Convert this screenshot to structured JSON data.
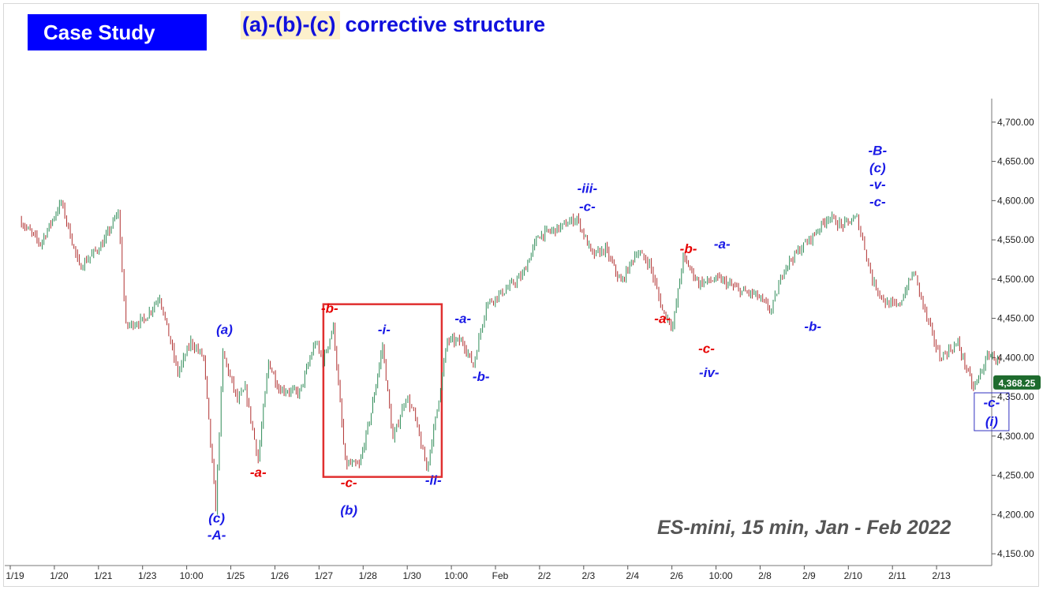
{
  "header": {
    "badge": "Case Study",
    "pattern_label": "(a)-(b)-(c)",
    "subtitle": "corrective structure"
  },
  "footer": {
    "instrument": "ES-mini, 15 min, Jan - Feb 2022"
  },
  "colors": {
    "badge_bg": "#0000ff",
    "wave_blue": "#1a1ae6",
    "wave_red": "#e60000",
    "bull_candle": "#2e8b57",
    "bear_candle": "#b03030",
    "highlight_box": "#e03030",
    "last_price_bg": "#1e6b2e"
  },
  "chart_data": {
    "type": "candlestick",
    "x_axis": {
      "ticks": [
        "1/19",
        "1/20",
        "1/21",
        "1/23",
        "10:00",
        "1/25",
        "1/26",
        "1/27",
        "1/28",
        "1/30",
        "10:00",
        "Feb",
        "2/2",
        "2/3",
        "2/4",
        "2/6",
        "10:00",
        "2/8",
        "2/9",
        "2/10",
        "2/11",
        "2/13"
      ]
    },
    "y_axis": {
      "position": "right",
      "range": [
        4135,
        4730
      ],
      "ticks": [
        4150,
        4200,
        4250,
        4300,
        4350,
        4400,
        4450,
        4500,
        4550,
        4600,
        4650,
        4700
      ],
      "tick_labels": [
        "4,150.00",
        "4,200.00",
        "4,250.00",
        "4,300.00",
        "4,350.00",
        "4,400.00",
        "4,450.00",
        "4,500.00",
        "4,550.00",
        "4,600.00",
        "4,650.00",
        "4,700.00"
      ]
    },
    "last_price": {
      "value": 4368.25,
      "label": "4,368.25"
    },
    "path_pivots": [
      [
        0,
        4575
      ],
      [
        0.4,
        4545
      ],
      [
        0.8,
        4598
      ],
      [
        1.15,
        4515
      ],
      [
        1.6,
        4545
      ],
      [
        1.9,
        4585
      ],
      [
        2.05,
        4440
      ],
      [
        2.4,
        4448
      ],
      [
        2.7,
        4478
      ],
      [
        3.05,
        4380
      ],
      [
        3.3,
        4420
      ],
      [
        3.55,
        4400
      ],
      [
        3.78,
        4208
      ],
      [
        3.92,
        4405
      ],
      [
        4.2,
        4345
      ],
      [
        4.35,
        4360
      ],
      [
        4.6,
        4270
      ],
      [
        4.8,
        4395
      ],
      [
        5.0,
        4360
      ],
      [
        5.4,
        4355
      ],
      [
        5.7,
        4420
      ],
      [
        5.85,
        4395
      ],
      [
        6.05,
        4440
      ],
      [
        6.28,
        4265
      ],
      [
        6.55,
        4262
      ],
      [
        6.78,
        4330
      ],
      [
        7.0,
        4415
      ],
      [
        7.2,
        4295
      ],
      [
        7.45,
        4350
      ],
      [
        7.6,
        4330
      ],
      [
        7.85,
        4258
      ],
      [
        8.02,
        4320
      ],
      [
        8.25,
        4422
      ],
      [
        8.55,
        4420
      ],
      [
        8.75,
        4390
      ],
      [
        9.0,
        4468
      ],
      [
        9.35,
        4485
      ],
      [
        9.7,
        4505
      ],
      [
        10.0,
        4555
      ],
      [
        10.4,
        4565
      ],
      [
        10.75,
        4578
      ],
      [
        11.05,
        4530
      ],
      [
        11.3,
        4538
      ],
      [
        11.6,
        4495
      ],
      [
        11.9,
        4535
      ],
      [
        12.15,
        4520
      ],
      [
        12.4,
        4460
      ],
      [
        12.6,
        4440
      ],
      [
        12.8,
        4528
      ],
      [
        13.1,
        4495
      ],
      [
        13.5,
        4500
      ],
      [
        13.9,
        4485
      ],
      [
        14.2,
        4480
      ],
      [
        14.5,
        4460
      ],
      [
        14.75,
        4515
      ],
      [
        15.05,
        4538
      ],
      [
        15.3,
        4555
      ],
      [
        15.6,
        4580
      ],
      [
        15.85,
        4568
      ],
      [
        16.15,
        4578
      ],
      [
        16.3,
        4540
      ],
      [
        16.45,
        4498
      ],
      [
        16.7,
        4470
      ],
      [
        16.95,
        4465
      ],
      [
        17.25,
        4510
      ],
      [
        17.5,
        4450
      ],
      [
        17.75,
        4400
      ],
      [
        18.1,
        4418
      ],
      [
        18.4,
        4360
      ],
      [
        18.7,
        4405
      ],
      [
        18.9,
        4395
      ]
    ],
    "wave_labels": [
      {
        "text": "(a)",
        "x": 3.95,
        "y": 4430,
        "color": "blue"
      },
      {
        "text": "(c)",
        "x": 3.8,
        "y": 4190,
        "color": "blue"
      },
      {
        "text": "-A-",
        "x": 3.8,
        "y": 4168,
        "color": "blue"
      },
      {
        "text": "-a-",
        "x": 4.6,
        "y": 4248,
        "color": "red"
      },
      {
        "text": "-b-",
        "x": 5.98,
        "y": 4457,
        "color": "red"
      },
      {
        "text": "-c-",
        "x": 6.35,
        "y": 4235,
        "color": "red"
      },
      {
        "text": "(b)",
        "x": 6.35,
        "y": 4200,
        "color": "blue"
      },
      {
        "text": "-i-",
        "x": 7.03,
        "y": 4430,
        "color": "blue"
      },
      {
        "text": "-ii-",
        "x": 7.98,
        "y": 4238,
        "color": "blue"
      },
      {
        "text": "-a-",
        "x": 8.55,
        "y": 4444,
        "color": "blue"
      },
      {
        "text": "-b-",
        "x": 8.9,
        "y": 4370,
        "color": "blue"
      },
      {
        "text": "-iii-",
        "x": 10.95,
        "y": 4610,
        "color": "blue"
      },
      {
        "text": "-c-",
        "x": 10.95,
        "y": 4587,
        "color": "blue"
      },
      {
        "text": "-b-",
        "x": 12.9,
        "y": 4533,
        "color": "red"
      },
      {
        "text": "-a-",
        "x": 13.55,
        "y": 4539,
        "color": "blue"
      },
      {
        "text": "-a-",
        "x": 12.4,
        "y": 4444,
        "color": "red"
      },
      {
        "text": "-c-",
        "x": 13.25,
        "y": 4406,
        "color": "red"
      },
      {
        "text": "-iv-",
        "x": 13.3,
        "y": 4375,
        "color": "blue"
      },
      {
        "text": "-b-",
        "x": 15.3,
        "y": 4434,
        "color": "blue"
      },
      {
        "text": "-B-",
        "x": 16.55,
        "y": 4658,
        "color": "blue"
      },
      {
        "text": "(c)",
        "x": 16.55,
        "y": 4636,
        "color": "blue"
      },
      {
        "text": "-v-",
        "x": 16.55,
        "y": 4615,
        "color": "blue"
      },
      {
        "text": "-c-",
        "x": 16.55,
        "y": 4593,
        "color": "blue"
      },
      {
        "text": "-c-",
        "x": 18.75,
        "y": 4337,
        "color": "blue",
        "boxed": true
      },
      {
        "text": "(i)",
        "x": 18.75,
        "y": 4313,
        "color": "blue",
        "boxed": true
      }
    ]
  }
}
